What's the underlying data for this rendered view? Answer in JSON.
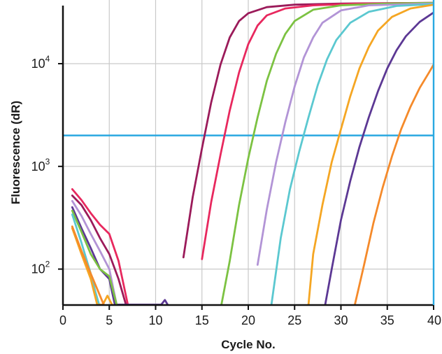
{
  "chart_data": {
    "type": "line",
    "title": "",
    "xlabel": "Cycle No.",
    "ylabel": "Fluorescence (dR)",
    "xlim": [
      0,
      40
    ],
    "ylim_log10": [
      1.65,
      4.62
    ],
    "y_scale": "log",
    "x_ticks": [
      0,
      5,
      10,
      15,
      20,
      25,
      30,
      35,
      40
    ],
    "x_tick_labels": [
      "0",
      "5",
      "10",
      "15",
      "20",
      "25",
      "30",
      "35",
      "40"
    ],
    "y_ticks": [
      {
        "value": 100,
        "base": "10",
        "exp": "2"
      },
      {
        "value": 1000,
        "base": "10",
        "exp": "3"
      },
      {
        "value": 10000,
        "base": "10",
        "exp": "4"
      }
    ],
    "grid": "vertical",
    "threshold": {
      "value": 2000,
      "color": "#29a8e0"
    },
    "series": [
      {
        "color": "#9b1b5a",
        "points": [
          [
            13,
            130
          ],
          [
            14,
            500
          ],
          [
            15,
            1500
          ],
          [
            16,
            4200
          ],
          [
            17,
            9800
          ],
          [
            18,
            18000
          ],
          [
            19,
            26000
          ],
          [
            20,
            31000
          ],
          [
            22,
            35500
          ],
          [
            25,
            37500
          ],
          [
            30,
            38500
          ],
          [
            40,
            39000
          ]
        ]
      },
      {
        "color": "#e8285e",
        "points": [
          [
            15,
            125
          ],
          [
            16,
            450
          ],
          [
            17,
            1300
          ],
          [
            18,
            3500
          ],
          [
            19,
            8200
          ],
          [
            20,
            15500
          ],
          [
            21,
            23500
          ],
          [
            22,
            29500
          ],
          [
            24,
            34500
          ],
          [
            27,
            37000
          ],
          [
            32,
            38500
          ],
          [
            40,
            39000
          ]
        ]
      },
      {
        "color": "#7cc242",
        "points": [
          [
            17.1,
            45
          ],
          [
            18,
            120
          ],
          [
            19,
            420
          ],
          [
            20,
            1200
          ],
          [
            21,
            3000
          ],
          [
            22,
            6800
          ],
          [
            23,
            12500
          ],
          [
            24,
            19500
          ],
          [
            25,
            26000
          ],
          [
            27,
            33500
          ],
          [
            30,
            37000
          ],
          [
            35,
            38500
          ],
          [
            40,
            39000
          ]
        ]
      },
      {
        "color": "#b294d6",
        "points": [
          [
            21,
            110
          ],
          [
            22,
            380
          ],
          [
            23,
            1100
          ],
          [
            24,
            2700
          ],
          [
            25,
            6000
          ],
          [
            26,
            11500
          ],
          [
            27,
            18000
          ],
          [
            28,
            25000
          ],
          [
            30,
            33000
          ],
          [
            33,
            37000
          ],
          [
            40,
            38500
          ]
        ]
      },
      {
        "color": "#5bc8d0",
        "points": [
          [
            22.5,
            45
          ],
          [
            23.5,
            200
          ],
          [
            24.5,
            600
          ],
          [
            25.5,
            1400
          ],
          [
            26.5,
            3000
          ],
          [
            27.5,
            6200
          ],
          [
            28.5,
            11000
          ],
          [
            29.5,
            17000
          ],
          [
            31,
            25000
          ],
          [
            33,
            32000
          ],
          [
            36,
            36500
          ],
          [
            40,
            38000
          ]
        ]
      },
      {
        "color": "#f5a623",
        "points": [
          [
            26.5,
            45
          ],
          [
            27,
            140
          ],
          [
            28,
            420
          ],
          [
            29,
            1100
          ],
          [
            30,
            2300
          ],
          [
            31,
            4800
          ],
          [
            32,
            9000
          ],
          [
            33,
            14500
          ],
          [
            34,
            21000
          ],
          [
            35.5,
            28500
          ],
          [
            37.5,
            34500
          ],
          [
            40,
            37500
          ]
        ]
      },
      {
        "color": "#5c3894",
        "points": [
          [
            28.3,
            45
          ],
          [
            29,
            100
          ],
          [
            30,
            300
          ],
          [
            31,
            720
          ],
          [
            32,
            1550
          ],
          [
            33,
            3000
          ],
          [
            34,
            5400
          ],
          [
            35,
            9000
          ],
          [
            36,
            13500
          ],
          [
            37,
            18500
          ],
          [
            38.5,
            25500
          ],
          [
            40,
            31500
          ]
        ]
      },
      {
        "color": "#f58a2a",
        "points": [
          [
            31.5,
            45
          ],
          [
            32.5,
            110
          ],
          [
            33.5,
            280
          ],
          [
            34.5,
            620
          ],
          [
            35.5,
            1250
          ],
          [
            36.5,
            2300
          ],
          [
            37.5,
            3800
          ],
          [
            38.5,
            5800
          ],
          [
            39.5,
            8200
          ],
          [
            40,
            9800
          ]
        ]
      },
      {
        "color": "#e8285e",
        "points": [
          [
            1,
            600
          ],
          [
            2,
            470
          ],
          [
            3,
            350
          ],
          [
            4,
            270
          ],
          [
            5,
            220
          ],
          [
            6,
            120
          ],
          [
            7,
            45
          ]
        ]
      },
      {
        "color": "#9b1b5a",
        "points": [
          [
            1,
            520
          ],
          [
            2,
            420
          ],
          [
            3,
            300
          ],
          [
            4,
            200
          ],
          [
            5,
            140
          ],
          [
            6,
            80
          ],
          [
            6.8,
            45
          ]
        ]
      },
      {
        "color": "#b294d6",
        "points": [
          [
            1,
            460
          ],
          [
            2,
            330
          ],
          [
            3,
            220
          ],
          [
            4,
            150
          ],
          [
            5,
            100
          ],
          [
            5.8,
            45
          ]
        ]
      },
      {
        "color": "#5c3894",
        "points": [
          [
            1,
            400
          ],
          [
            2,
            250
          ],
          [
            3,
            160
          ],
          [
            4,
            100
          ],
          [
            5,
            80
          ],
          [
            5.6,
            45
          ],
          [
            10.6,
            45
          ],
          [
            11,
            50
          ],
          [
            11.3,
            45
          ]
        ]
      },
      {
        "color": "#7cc242",
        "points": [
          [
            1,
            370
          ],
          [
            2,
            230
          ],
          [
            3,
            140
          ],
          [
            4,
            100
          ],
          [
            5,
            85
          ],
          [
            5.8,
            45
          ]
        ]
      },
      {
        "color": "#5bc8d0",
        "points": [
          [
            1,
            340
          ],
          [
            2,
            180
          ],
          [
            3,
            90
          ],
          [
            3.5,
            60
          ],
          [
            3.9,
            45
          ]
        ]
      },
      {
        "color": "#f5a623",
        "points": [
          [
            1,
            250
          ],
          [
            2,
            140
          ],
          [
            3,
            80
          ],
          [
            3.7,
            45
          ],
          [
            4.3,
            45
          ],
          [
            4.8,
            55
          ],
          [
            5.3,
            45
          ]
        ]
      },
      {
        "color": "#f58a2a",
        "points": [
          [
            1,
            260
          ],
          [
            2,
            150
          ],
          [
            3,
            90
          ],
          [
            4,
            55
          ],
          [
            4.4,
            45
          ]
        ]
      }
    ]
  }
}
